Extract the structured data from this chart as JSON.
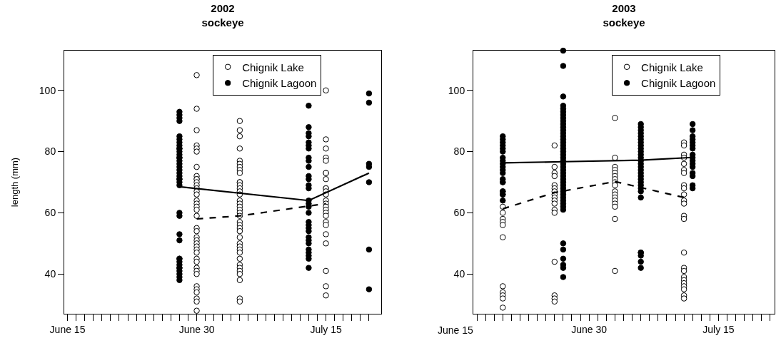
{
  "chart_data": [
    {
      "type": "scatter",
      "title": "2002\nsockeye",
      "ylabel": "length (mm)",
      "xlim": [
        "2002-06-14T15:00",
        "2002-07-21T10:00"
      ],
      "ylim": [
        27,
        113
      ],
      "yticks": [
        40,
        60,
        80,
        100
      ],
      "xticks": [
        {
          "value": "2002-06-15",
          "label": "June 15"
        },
        {
          "value": "2002-06-16",
          "label": null
        },
        {
          "value": "2002-06-17",
          "label": null
        },
        {
          "value": "2002-06-18",
          "label": null
        },
        {
          "value": "2002-06-19",
          "label": null
        },
        {
          "value": "2002-06-20",
          "label": null
        },
        {
          "value": "2002-06-21",
          "label": null
        },
        {
          "value": "2002-06-22",
          "label": null
        },
        {
          "value": "2002-06-23",
          "label": null
        },
        {
          "value": "2002-06-24",
          "label": null
        },
        {
          "value": "2002-06-25",
          "label": null
        },
        {
          "value": "2002-06-26",
          "label": null
        },
        {
          "value": "2002-06-27",
          "label": null
        },
        {
          "value": "2002-06-28",
          "label": null
        },
        {
          "value": "2002-06-29",
          "label": null
        },
        {
          "value": "2002-06-30",
          "label": "June 30"
        },
        {
          "value": "2002-07-01",
          "label": null
        },
        {
          "value": "2002-07-02",
          "label": null
        },
        {
          "value": "2002-07-03",
          "label": null
        },
        {
          "value": "2002-07-04",
          "label": null
        },
        {
          "value": "2002-07-05",
          "label": null
        },
        {
          "value": "2002-07-06",
          "label": null
        },
        {
          "value": "2002-07-07",
          "label": null
        },
        {
          "value": "2002-07-08",
          "label": null
        },
        {
          "value": "2002-07-09",
          "label": null
        },
        {
          "value": "2002-07-10",
          "label": null
        },
        {
          "value": "2002-07-11",
          "label": null
        },
        {
          "value": "2002-07-12",
          "label": null
        },
        {
          "value": "2002-07-13",
          "label": null
        },
        {
          "value": "2002-07-14",
          "label": null
        },
        {
          "value": "2002-07-15",
          "label": "July 15"
        },
        {
          "value": "2002-07-16",
          "label": null
        },
        {
          "value": "2002-07-17",
          "label": null
        },
        {
          "value": "2002-07-18",
          "label": null
        },
        {
          "value": "2002-07-19",
          "label": null
        },
        {
          "value": "2002-07-20",
          "label": null
        }
      ],
      "grid": false,
      "legend": "top",
      "marker": "circle",
      "series": [
        {
          "name": "Chignik Lake",
          "color": "#ffffff",
          "x": [
            "2002-06-30",
            "2002-06-30",
            "2002-06-30",
            "2002-06-30",
            "2002-06-30",
            "2002-06-30",
            "2002-06-30",
            "2002-06-30",
            "2002-06-30",
            "2002-06-30",
            "2002-06-30",
            "2002-06-30",
            "2002-06-30",
            "2002-06-30",
            "2002-06-30",
            "2002-06-30",
            "2002-06-30",
            "2002-06-30",
            "2002-06-30",
            "2002-06-30",
            "2002-06-30",
            "2002-06-30",
            "2002-06-30",
            "2002-06-30",
            "2002-06-30",
            "2002-06-30",
            "2002-06-30",
            "2002-06-30",
            "2002-06-30",
            "2002-06-30",
            "2002-06-30",
            "2002-06-30",
            "2002-06-30",
            "2002-06-30",
            "2002-06-30",
            "2002-06-30",
            "2002-06-30",
            "2002-06-30",
            "2002-06-30",
            "2002-07-05",
            "2002-07-05",
            "2002-07-05",
            "2002-07-05",
            "2002-07-05",
            "2002-07-05",
            "2002-07-05",
            "2002-07-05",
            "2002-07-05",
            "2002-07-05",
            "2002-07-05",
            "2002-07-05",
            "2002-07-05",
            "2002-07-05",
            "2002-07-05",
            "2002-07-05",
            "2002-07-05",
            "2002-07-05",
            "2002-07-05",
            "2002-07-05",
            "2002-07-05",
            "2002-07-05",
            "2002-07-05",
            "2002-07-05",
            "2002-07-05",
            "2002-07-05",
            "2002-07-05",
            "2002-07-05",
            "2002-07-05",
            "2002-07-05",
            "2002-07-05",
            "2002-07-05",
            "2002-07-05",
            "2002-07-05",
            "2002-07-05",
            "2002-07-05",
            "2002-07-05",
            "2002-07-05",
            "2002-07-15",
            "2002-07-15",
            "2002-07-15",
            "2002-07-15",
            "2002-07-15",
            "2002-07-15",
            "2002-07-15",
            "2002-07-15",
            "2002-07-15",
            "2002-07-15",
            "2002-07-15",
            "2002-07-15",
            "2002-07-15",
            "2002-07-15",
            "2002-07-15",
            "2002-07-15",
            "2002-07-15",
            "2002-07-15",
            "2002-07-15",
            "2002-07-15",
            "2002-07-15",
            "2002-07-15",
            "2002-07-15",
            "2002-07-15",
            "2002-07-15"
          ],
          "values": [
            105,
            94,
            87,
            82,
            81,
            80,
            75,
            72,
            71,
            71,
            70,
            69,
            68,
            67,
            66,
            64,
            63,
            62,
            61,
            59,
            55,
            54,
            52,
            51,
            50,
            49,
            48,
            47,
            45,
            44,
            42,
            41,
            40,
            36,
            35,
            34,
            32,
            31,
            28,
            90,
            87,
            85,
            81,
            77,
            76,
            75,
            74,
            73,
            70,
            70,
            69,
            68,
            67,
            66,
            64,
            63,
            62,
            61,
            60,
            59,
            57,
            56,
            55,
            54,
            52,
            50,
            49,
            48,
            47,
            45,
            43,
            42,
            41,
            40,
            38,
            32,
            31,
            100,
            84,
            81,
            78,
            77,
            73,
            73,
            71,
            68,
            68,
            67,
            66,
            64,
            63,
            62,
            61,
            60,
            59,
            57,
            56,
            53,
            50,
            41,
            36,
            33
          ]
        },
        {
          "name": "Chignik Lagoon",
          "color": "#000000",
          "x": [
            "2002-06-28",
            "2002-06-28",
            "2002-06-28",
            "2002-06-28",
            "2002-06-28",
            "2002-06-28",
            "2002-06-28",
            "2002-06-28",
            "2002-06-28",
            "2002-06-28",
            "2002-06-28",
            "2002-06-28",
            "2002-06-28",
            "2002-06-28",
            "2002-06-28",
            "2002-06-28",
            "2002-06-28",
            "2002-06-28",
            "2002-06-28",
            "2002-06-28",
            "2002-06-28",
            "2002-06-28",
            "2002-06-28",
            "2002-06-28",
            "2002-06-28",
            "2002-06-28",
            "2002-06-28",
            "2002-06-28",
            "2002-06-28",
            "2002-06-28",
            "2002-06-28",
            "2002-06-28",
            "2002-06-28",
            "2002-06-28",
            "2002-06-28",
            "2002-06-28",
            "2002-06-28",
            "2002-06-28",
            "2002-07-13",
            "2002-07-13",
            "2002-07-13",
            "2002-07-13",
            "2002-07-13",
            "2002-07-13",
            "2002-07-13",
            "2002-07-13",
            "2002-07-13",
            "2002-07-13",
            "2002-07-13",
            "2002-07-13",
            "2002-07-13",
            "2002-07-13",
            "2002-07-13",
            "2002-07-13",
            "2002-07-13",
            "2002-07-13",
            "2002-07-13",
            "2002-07-13",
            "2002-07-13",
            "2002-07-13",
            "2002-07-13",
            "2002-07-13",
            "2002-07-13",
            "2002-07-13",
            "2002-07-13",
            "2002-07-13",
            "2002-07-13",
            "2002-07-13",
            "2002-07-20",
            "2002-07-20",
            "2002-07-20",
            "2002-07-20",
            "2002-07-20",
            "2002-07-20",
            "2002-07-20"
          ],
          "values": [
            93,
            92,
            91,
            90,
            85,
            84,
            83,
            82,
            81,
            81,
            80,
            79,
            78,
            78,
            77,
            76,
            75,
            74,
            73,
            72,
            71,
            71,
            70,
            69,
            60,
            59,
            53,
            51,
            45,
            45,
            44,
            43,
            42,
            42,
            41,
            40,
            39,
            38,
            95,
            88,
            86,
            85,
            83,
            82,
            81,
            78,
            77,
            75,
            72,
            71,
            69,
            68,
            64,
            63,
            62,
            60,
            57,
            56,
            55,
            54,
            52,
            51,
            50,
            48,
            47,
            46,
            45,
            42,
            99,
            96,
            76,
            75,
            70,
            48,
            35
          ]
        },
        {
          "type": "line",
          "color": "#000000",
          "line_style": "dashed",
          "marker": "none",
          "x": [
            "2002-06-30",
            "2002-07-05",
            "2002-07-15"
          ],
          "values": [
            58,
            59,
            63
          ]
        },
        {
          "type": "line",
          "color": "#000000",
          "line_style": "solid",
          "marker": "none",
          "x": [
            "2002-06-28",
            "2002-07-13",
            "2002-07-20"
          ],
          "values": [
            68.5,
            64,
            73
          ]
        }
      ]
    },
    {
      "type": "scatter",
      "title": "2003\nsockeye",
      "xlim": [
        "2003-06-16T14:00",
        "2003-07-21T12:00"
      ],
      "ylim": [
        27,
        113
      ],
      "yticks": [
        40,
        60,
        80,
        100
      ],
      "annotations": [
        "June 15"
      ],
      "xticks": [
        {
          "value": "2003-06-17",
          "label": null
        },
        {
          "value": "2003-06-18",
          "label": null
        },
        {
          "value": "2003-06-19",
          "label": null
        },
        {
          "value": "2003-06-20",
          "label": null
        },
        {
          "value": "2003-06-21",
          "label": null
        },
        {
          "value": "2003-06-22",
          "label": null
        },
        {
          "value": "2003-06-23",
          "label": null
        },
        {
          "value": "2003-06-24",
          "label": null
        },
        {
          "value": "2003-06-25",
          "label": null
        },
        {
          "value": "2003-06-26",
          "label": null
        },
        {
          "value": "2003-06-27",
          "label": null
        },
        {
          "value": "2003-06-28",
          "label": null
        },
        {
          "value": "2003-06-29",
          "label": null
        },
        {
          "value": "2003-06-30",
          "label": "June 30"
        },
        {
          "value": "2003-07-01",
          "label": null
        },
        {
          "value": "2003-07-02",
          "label": null
        },
        {
          "value": "2003-07-03",
          "label": null
        },
        {
          "value": "2003-07-04",
          "label": null
        },
        {
          "value": "2003-07-05",
          "label": null
        },
        {
          "value": "2003-07-06",
          "label": null
        },
        {
          "value": "2003-07-07",
          "label": null
        },
        {
          "value": "2003-07-08",
          "label": null
        },
        {
          "value": "2003-07-09",
          "label": null
        },
        {
          "value": "2003-07-10",
          "label": null
        },
        {
          "value": "2003-07-11",
          "label": null
        },
        {
          "value": "2003-07-12",
          "label": null
        },
        {
          "value": "2003-07-13",
          "label": null
        },
        {
          "value": "2003-07-14",
          "label": null
        },
        {
          "value": "2003-07-15",
          "label": "July 15"
        },
        {
          "value": "2003-07-16",
          "label": null
        },
        {
          "value": "2003-07-17",
          "label": null
        },
        {
          "value": "2003-07-18",
          "label": null
        },
        {
          "value": "2003-07-19",
          "label": null
        },
        {
          "value": "2003-07-20",
          "label": null
        },
        {
          "value": "2003-07-21",
          "label": null
        }
      ],
      "grid": false,
      "legend": "top",
      "marker": "circle",
      "series": [
        {
          "name": "Chignik Lake",
          "color": "#ffffff",
          "x": [
            "2003-06-20",
            "2003-06-20",
            "2003-06-20",
            "2003-06-20",
            "2003-06-20",
            "2003-06-20",
            "2003-06-20",
            "2003-06-20",
            "2003-06-20",
            "2003-06-20",
            "2003-06-20",
            "2003-06-20",
            "2003-06-20",
            "2003-06-20",
            "2003-06-26",
            "2003-06-26",
            "2003-06-26",
            "2003-06-26",
            "2003-06-26",
            "2003-06-26",
            "2003-06-26",
            "2003-06-26",
            "2003-06-26",
            "2003-06-26",
            "2003-06-26",
            "2003-06-26",
            "2003-06-26",
            "2003-06-26",
            "2003-06-26",
            "2003-06-26",
            "2003-06-26",
            "2003-07-03",
            "2003-07-03",
            "2003-07-03",
            "2003-07-03",
            "2003-07-03",
            "2003-07-03",
            "2003-07-03",
            "2003-07-03",
            "2003-07-03",
            "2003-07-03",
            "2003-07-03",
            "2003-07-03",
            "2003-07-03",
            "2003-07-03",
            "2003-07-03",
            "2003-07-03",
            "2003-07-03",
            "2003-07-11",
            "2003-07-11",
            "2003-07-11",
            "2003-07-11",
            "2003-07-11",
            "2003-07-11",
            "2003-07-11",
            "2003-07-11",
            "2003-07-11",
            "2003-07-11",
            "2003-07-11",
            "2003-07-11",
            "2003-07-11",
            "2003-07-11",
            "2003-07-11",
            "2003-07-11",
            "2003-07-11",
            "2003-07-11",
            "2003-07-11",
            "2003-07-11",
            "2003-07-11",
            "2003-07-11",
            "2003-07-11",
            "2003-07-11"
          ],
          "values": [
            70,
            67,
            66,
            62,
            60,
            58,
            57,
            56,
            52,
            36,
            34,
            33,
            32,
            29,
            82,
            75,
            73,
            72,
            69,
            68,
            67,
            66,
            65,
            64,
            63,
            61,
            60,
            44,
            33,
            32,
            31,
            91,
            78,
            75,
            74,
            73,
            72,
            71,
            70,
            69,
            67,
            66,
            65,
            64,
            63,
            62,
            58,
            41,
            83,
            82,
            79,
            78,
            76,
            74,
            73,
            69,
            68,
            66,
            64,
            63,
            59,
            58,
            47,
            42,
            41,
            39,
            38,
            37,
            36,
            35,
            33,
            32
          ]
        },
        {
          "name": "Chignik Lagoon",
          "color": "#000000",
          "x": [
            "2003-06-20",
            "2003-06-20",
            "2003-06-20",
            "2003-06-20",
            "2003-06-20",
            "2003-06-20",
            "2003-06-20",
            "2003-06-20",
            "2003-06-20",
            "2003-06-20",
            "2003-06-20",
            "2003-06-20",
            "2003-06-20",
            "2003-06-20",
            "2003-06-20",
            "2003-06-20",
            "2003-06-20",
            "2003-06-27",
            "2003-06-27",
            "2003-06-27",
            "2003-06-27",
            "2003-06-27",
            "2003-06-27",
            "2003-06-27",
            "2003-06-27",
            "2003-06-27",
            "2003-06-27",
            "2003-06-27",
            "2003-06-27",
            "2003-06-27",
            "2003-06-27",
            "2003-06-27",
            "2003-06-27",
            "2003-06-27",
            "2003-06-27",
            "2003-06-27",
            "2003-06-27",
            "2003-06-27",
            "2003-06-27",
            "2003-06-27",
            "2003-06-27",
            "2003-06-27",
            "2003-06-27",
            "2003-06-27",
            "2003-06-27",
            "2003-06-27",
            "2003-06-27",
            "2003-06-27",
            "2003-06-27",
            "2003-06-27",
            "2003-06-27",
            "2003-06-27",
            "2003-06-27",
            "2003-06-27",
            "2003-06-27",
            "2003-06-27",
            "2003-06-27",
            "2003-06-27",
            "2003-06-27",
            "2003-06-27",
            "2003-06-27",
            "2003-07-06",
            "2003-07-06",
            "2003-07-06",
            "2003-07-06",
            "2003-07-06",
            "2003-07-06",
            "2003-07-06",
            "2003-07-06",
            "2003-07-06",
            "2003-07-06",
            "2003-07-06",
            "2003-07-06",
            "2003-07-06",
            "2003-07-06",
            "2003-07-06",
            "2003-07-06",
            "2003-07-06",
            "2003-07-06",
            "2003-07-06",
            "2003-07-06",
            "2003-07-06",
            "2003-07-06",
            "2003-07-06",
            "2003-07-06",
            "2003-07-06",
            "2003-07-06",
            "2003-07-06",
            "2003-07-06",
            "2003-07-06",
            "2003-07-12",
            "2003-07-12",
            "2003-07-12",
            "2003-07-12",
            "2003-07-12",
            "2003-07-12",
            "2003-07-12",
            "2003-07-12",
            "2003-07-12",
            "2003-07-12",
            "2003-07-12",
            "2003-07-12",
            "2003-07-12",
            "2003-07-12",
            "2003-07-12",
            "2003-07-12"
          ],
          "values": [
            85,
            84,
            83,
            82,
            81,
            80,
            78,
            77,
            76,
            75,
            74,
            73,
            71,
            70,
            67,
            66,
            64,
            113,
            108,
            98,
            95,
            94,
            93,
            92,
            91,
            90,
            89,
            88,
            87,
            86,
            85,
            84,
            83,
            82,
            81,
            80,
            79,
            78,
            77,
            76,
            75,
            74,
            73,
            72,
            71,
            70,
            69,
            68,
            67,
            66,
            65,
            64,
            63,
            62,
            61,
            50,
            48,
            45,
            43,
            42,
            39,
            89,
            88,
            87,
            86,
            85,
            84,
            83,
            82,
            81,
            80,
            79,
            78,
            77,
            76,
            75,
            74,
            73,
            72,
            71,
            70,
            69,
            68,
            67,
            65,
            47,
            47,
            46,
            44,
            42,
            89,
            87,
            85,
            84,
            83,
            82,
            81,
            79,
            78,
            77,
            76,
            75,
            73,
            72,
            69,
            68
          ]
        },
        {
          "type": "line",
          "color": "#000000",
          "line_style": "dashed",
          "marker": "none",
          "x": [
            "2003-06-20",
            "2003-06-26",
            "2003-07-03",
            "2003-07-11"
          ],
          "values": [
            61.3,
            66.6,
            70.2,
            65
          ]
        },
        {
          "type": "line",
          "color": "#000000",
          "line_style": "solid",
          "marker": "none",
          "x": [
            "2003-06-20",
            "2003-06-27",
            "2003-07-06",
            "2003-07-12"
          ],
          "values": [
            76.3,
            76.7,
            77.2,
            78.1
          ]
        }
      ]
    }
  ]
}
